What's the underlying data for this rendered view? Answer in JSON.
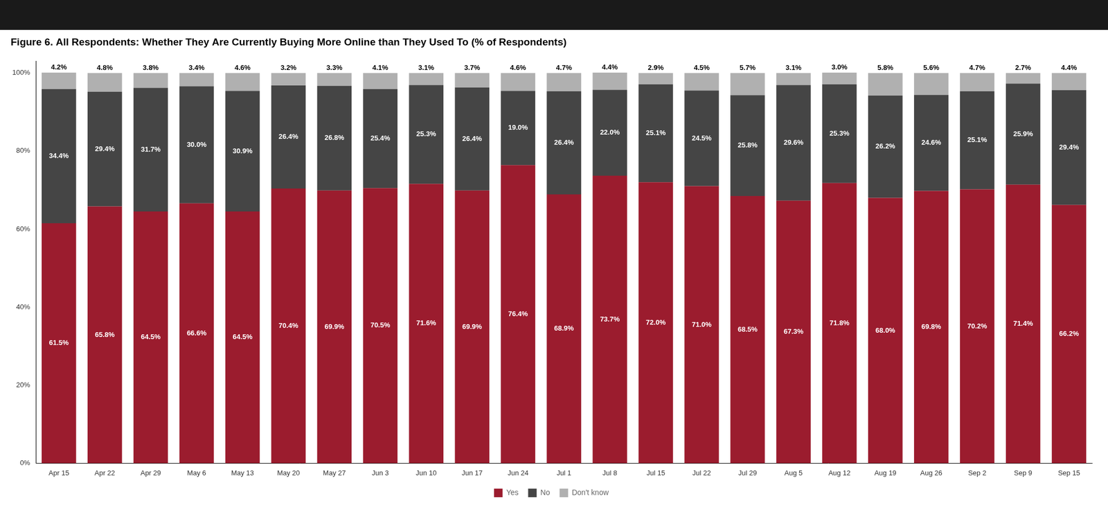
{
  "chart_data": {
    "type": "bar",
    "title": "Figure 6. All Respondents: Whether They Are Currently Buying More Online than They Used To (% of Respondents)",
    "categories": [
      "Apr 15",
      "Apr 22",
      "Apr 29",
      "May 6",
      "May 13",
      "May 20",
      "May 27",
      "Jun 3",
      "Jun 10",
      "Jun 17",
      "Jun 24",
      "Jul 1",
      "Jul 8",
      "Jul 15",
      "Jul 22",
      "Jul 29",
      "Aug 5",
      "Aug 12",
      "Aug 19",
      "Aug 26",
      "Sep 2",
      "Sep 9",
      "Sep 15"
    ],
    "series": [
      {
        "name": "Yes",
        "color": "#9b1c2e",
        "values": [
          61.5,
          65.8,
          64.5,
          66.6,
          64.5,
          70.4,
          69.9,
          70.5,
          71.6,
          69.9,
          76.4,
          68.9,
          73.7,
          72.0,
          71.0,
          68.5,
          67.3,
          71.8,
          68.0,
          69.8,
          70.2,
          71.4,
          66.2
        ],
        "value_labels": [
          "61.5%",
          "65.8%",
          "64.5%",
          "66.6%",
          "64.5%",
          "70.4%",
          "69.9%",
          "70.5%",
          "71.6%",
          "69.9%",
          "76.4%",
          "68.9%",
          "73.7%",
          "72.0%",
          "71.0%",
          "68.5%",
          "67.3%",
          "71.8%",
          "68.0%",
          "69.8%",
          "70.2%",
          "71.4%",
          "66.2%"
        ]
      },
      {
        "name": "No",
        "color": "#454545",
        "values": [
          34.4,
          29.4,
          31.7,
          30.0,
          30.9,
          26.4,
          26.8,
          25.4,
          25.3,
          26.4,
          19.0,
          26.4,
          22.0,
          25.1,
          24.5,
          25.8,
          29.6,
          25.3,
          26.2,
          24.6,
          25.1,
          25.9,
          29.4
        ],
        "value_labels": [
          "34.4%",
          "29.4%",
          "31.7%",
          "30.0%",
          "30.9%",
          "26.4%",
          "26.8%",
          "25.4%",
          "25.3%",
          "26.4%",
          "19.0%",
          "26.4%",
          "22.0%",
          "25.1%",
          "24.5%",
          "25.8%",
          "29.6%",
          "25.3%",
          "26.2%",
          "24.6%",
          "25.1%",
          "25.9%",
          "29.4%"
        ]
      },
      {
        "name": "Don't know",
        "color": "#b0b0b0",
        "values": [
          4.2,
          4.8,
          3.8,
          3.4,
          4.6,
          3.2,
          3.3,
          4.1,
          3.1,
          3.7,
          4.6,
          4.7,
          4.4,
          2.9,
          4.5,
          5.7,
          3.1,
          3.0,
          5.8,
          5.6,
          4.7,
          2.7,
          4.4
        ],
        "value_labels": [
          "4.2%",
          "4.8%",
          "3.8%",
          "3.4%",
          "4.6%",
          "3.2%",
          "3.3%",
          "4.1%",
          "3.1%",
          "3.7%",
          "4.6%",
          "4.7%",
          "4.4%",
          "2.9%",
          "4.5%",
          "5.7%",
          "3.1%",
          "3.0%",
          "5.8%",
          "5.6%",
          "4.7%",
          "2.7%",
          "4.4%"
        ]
      }
    ],
    "stacked": true,
    "data_labels": true,
    "ylim": [
      0,
      103
    ],
    "yticks": [
      {
        "value": 0,
        "label": "0%"
      },
      {
        "value": 20,
        "label": "20%"
      },
      {
        "value": 40,
        "label": "40%"
      },
      {
        "value": 60,
        "label": "60%"
      },
      {
        "value": 80,
        "label": "80%"
      },
      {
        "value": 100,
        "label": "100%"
      }
    ],
    "grid": false,
    "legend": "bottom"
  }
}
